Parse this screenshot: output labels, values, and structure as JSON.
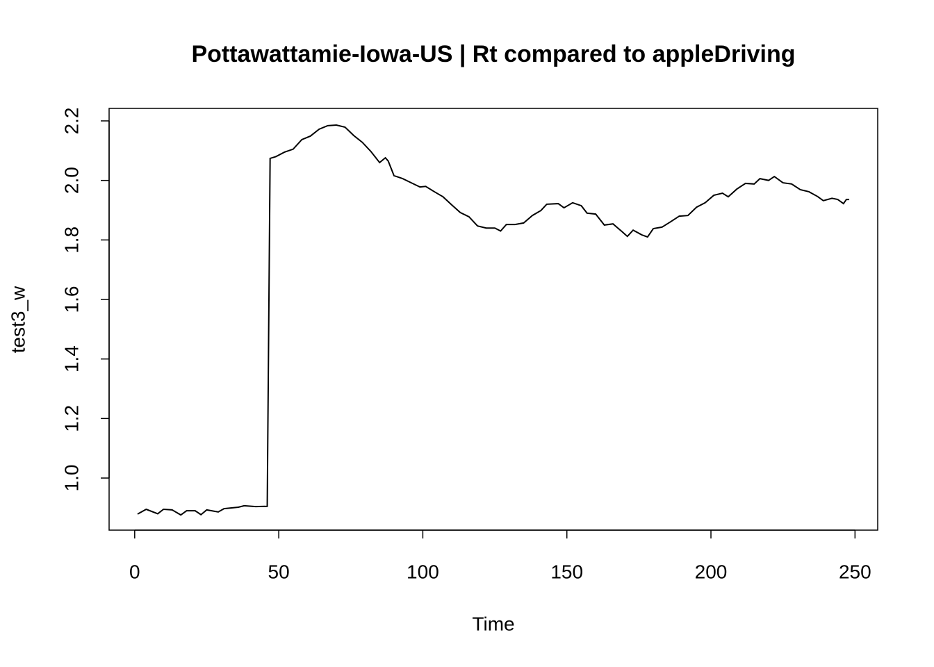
{
  "chart_data": {
    "type": "line",
    "title": "Pottawattamie-Iowa-US | Rt compared to appleDriving",
    "x_label": "Time",
    "y_label": "test3_w",
    "x": [
      1,
      4,
      8,
      10,
      13,
      16,
      18,
      21,
      23,
      25,
      29,
      31,
      36,
      38,
      42,
      46,
      47,
      49,
      52,
      55,
      58,
      61,
      64,
      67,
      70,
      73,
      76,
      79,
      82,
      85,
      87,
      88,
      90,
      93,
      96,
      99,
      101,
      104,
      107,
      110,
      113,
      116,
      119,
      122,
      125,
      127,
      129,
      132,
      135,
      138,
      141,
      143,
      147,
      149,
      152,
      155,
      157,
      160,
      163,
      166,
      169,
      171,
      173,
      176,
      178,
      180,
      183,
      186,
      189,
      192,
      195,
      198,
      201,
      204,
      206,
      209,
      212,
      215,
      217,
      220,
      222,
      225,
      228,
      231,
      234,
      237,
      239,
      242,
      244,
      246,
      247,
      248
    ],
    "series": [
      {
        "name": "test3_w",
        "color": "#000000",
        "values": [
          0.879,
          0.895,
          0.88,
          0.895,
          0.893,
          0.876,
          0.89,
          0.89,
          0.877,
          0.893,
          0.886,
          0.897,
          0.902,
          0.907,
          0.904,
          0.905,
          2.074,
          2.08,
          2.095,
          2.105,
          2.137,
          2.149,
          2.172,
          2.184,
          2.186,
          2.179,
          2.151,
          2.128,
          2.097,
          2.06,
          2.076,
          2.065,
          2.016,
          2.006,
          1.992,
          1.978,
          1.98,
          1.962,
          1.945,
          1.918,
          1.892,
          1.878,
          1.847,
          1.84,
          1.84,
          1.83,
          1.852,
          1.852,
          1.857,
          1.882,
          1.899,
          1.92,
          1.922,
          1.908,
          1.925,
          1.915,
          1.89,
          1.887,
          1.85,
          1.854,
          1.829,
          1.812,
          1.833,
          1.817,
          1.81,
          1.838,
          1.843,
          1.861,
          1.88,
          1.882,
          1.91,
          1.925,
          1.95,
          1.957,
          1.945,
          1.971,
          1.99,
          1.988,
          2.006,
          2.0,
          2.013,
          1.992,
          1.988,
          1.969,
          1.962,
          1.946,
          1.932,
          1.94,
          1.936,
          1.922,
          1.936,
          1.936
        ]
      }
    ],
    "xlim": [
      -8.88,
      257.88
    ],
    "xticks": [
      0,
      50,
      100,
      150,
      200,
      250
    ],
    "ylim": [
      0.825,
      2.242
    ],
    "yticks": [
      {
        "value": 1,
        "label": "1.0"
      },
      1.2,
      1.4,
      1.6,
      1.8,
      {
        "value": 2,
        "label": "2.0"
      },
      2.2
    ]
  }
}
